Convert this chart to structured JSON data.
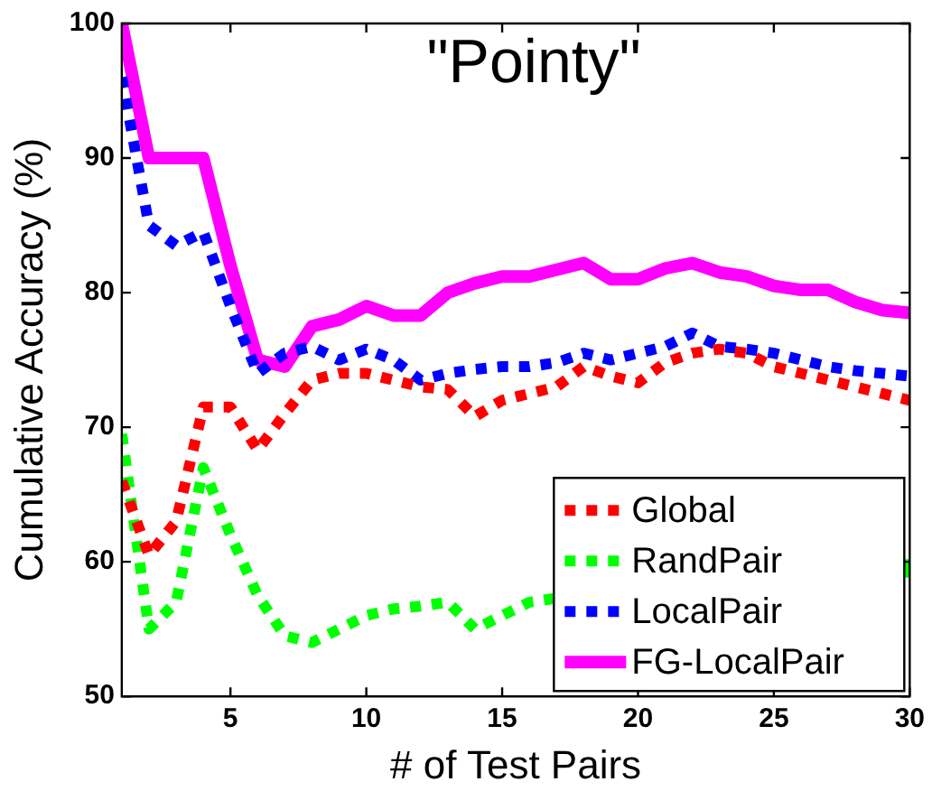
{
  "chart_data": {
    "type": "line",
    "title": "\"Pointy\"",
    "xlabel": "# of Test Pairs",
    "ylabel": "Cumulative Accuracy (%)",
    "x": [
      1,
      2,
      3,
      4,
      5,
      6,
      7,
      8,
      9,
      10,
      11,
      12,
      13,
      14,
      15,
      16,
      17,
      18,
      19,
      20,
      21,
      22,
      23,
      24,
      25,
      26,
      27,
      28,
      29,
      30
    ],
    "xlim": [
      1,
      30
    ],
    "xticks": [
      5,
      10,
      15,
      20,
      25,
      30
    ],
    "ylim": [
      50,
      100
    ],
    "yticks": [
      50,
      60,
      70,
      80,
      90,
      100
    ],
    "grid": false,
    "legend": "bottom right",
    "marker": "none",
    "series": [
      {
        "name": "Global",
        "color": "#ff0000",
        "line_style": "dotted",
        "values": [
          66,
          60.5,
          63,
          71.5,
          71.5,
          68.3,
          71,
          73.5,
          74,
          74,
          73.5,
          73,
          72.8,
          70.8,
          72,
          72.5,
          73,
          74.5,
          73.8,
          73.3,
          74.8,
          75.5,
          75.8,
          75.5,
          74.5,
          74,
          73.5,
          73,
          72.5,
          72
        ]
      },
      {
        "name": "RandPair",
        "color": "#00ff00",
        "line_style": "dotted",
        "values": [
          69.5,
          55,
          57,
          67,
          62,
          57.5,
          54.5,
          54,
          55,
          56,
          56.5,
          56.7,
          57,
          55,
          56,
          57,
          57.3,
          null,
          null,
          null,
          null,
          null,
          null,
          null,
          null,
          null,
          null,
          null,
          null,
          59.5
        ]
      },
      {
        "name": "LocalPair",
        "color": "#0000ff",
        "line_style": "dotted",
        "values": [
          96,
          85,
          83.5,
          84.5,
          79,
          74,
          75.5,
          76,
          75,
          75.8,
          75,
          73.5,
          74,
          74.3,
          74.5,
          74.5,
          74.8,
          75.5,
          75,
          75.5,
          76,
          77,
          76,
          75.8,
          75.5,
          75,
          74.5,
          74.2,
          74,
          73.8
        ]
      },
      {
        "name": "FG-LocalPair",
        "color": "#ff00ff",
        "line_style": "solid",
        "values": [
          100,
          90,
          90,
          90,
          82,
          75,
          74.5,
          77.5,
          78,
          79,
          78.3,
          78.3,
          80,
          80.7,
          81.2,
          81.2,
          81.7,
          82.2,
          81,
          81,
          81.8,
          82.2,
          81.5,
          81.2,
          80.5,
          80.2,
          80.2,
          79.3,
          78.7,
          78.5
        ]
      }
    ]
  }
}
